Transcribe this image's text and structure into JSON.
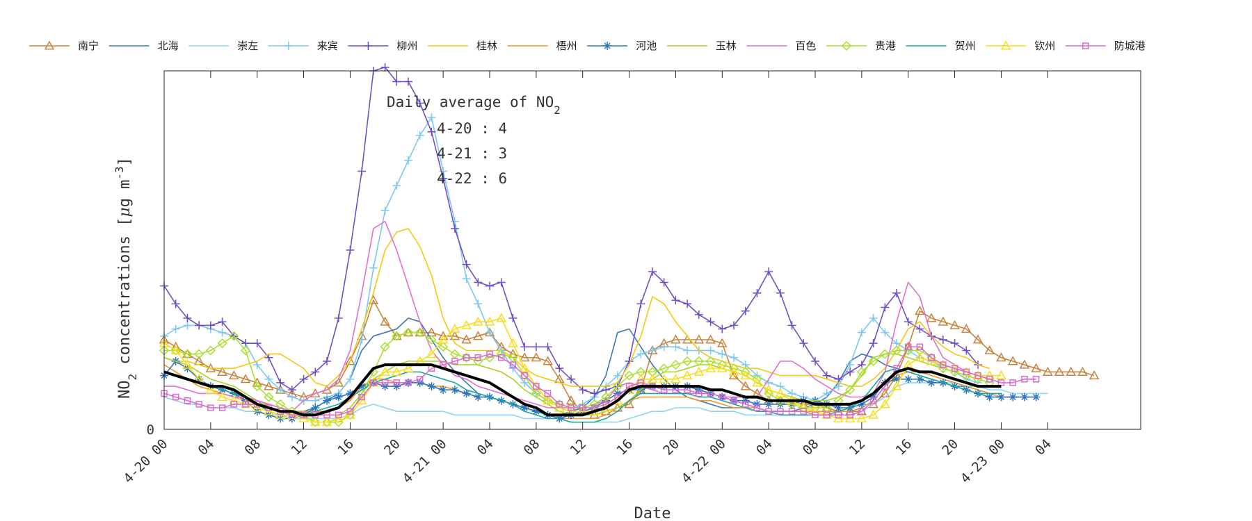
{
  "chart_data": {
    "type": "line",
    "xlabel": "Date",
    "ylabel": "NO",
    "ylabel_sub": "2",
    "ylabel_rest": " concentrations [",
    "ylabel_mu": "μ",
    "ylabel_unit": "g m",
    "ylabel_sup": "-3",
    "ylabel_close": "]",
    "y_tick_labels": [
      "0"
    ],
    "ylim": [
      0,
      100
    ],
    "x_tick_labels": [
      "4-20 00",
      "04",
      "08",
      "12",
      "16",
      "20",
      "4-21 00",
      "04",
      "08",
      "12",
      "16",
      "20",
      "4-22 00",
      "04",
      "08",
      "12",
      "16",
      "20",
      "4-23 00",
      "04"
    ],
    "grid": false,
    "legend_position": "top",
    "annotation": {
      "title": "Daily average of NO",
      "title_sub": "2",
      "lines": [
        "4-20 : 4",
        "4-21 : 3",
        "4-22 : 6"
      ]
    },
    "series": [
      {
        "name": "南宁",
        "color": "#c8823c",
        "marker": "triangle",
        "values": [
          25,
          23,
          21,
          19,
          17,
          16,
          15,
          14,
          13,
          12,
          11,
          10,
          9,
          10,
          11,
          13,
          19,
          26,
          36,
          30,
          26,
          27,
          27,
          27,
          26,
          26,
          25,
          26,
          27,
          23,
          21,
          20,
          20,
          19,
          14,
          8,
          5,
          4,
          5,
          6,
          7,
          11,
          22,
          24,
          25,
          25,
          25,
          25,
          24,
          15,
          12,
          10,
          8,
          8,
          8,
          7,
          7,
          6,
          5,
          5,
          5,
          7,
          10,
          15,
          23,
          33,
          31,
          30,
          29,
          28,
          25,
          22,
          20,
          19,
          18,
          17,
          16,
          16,
          16,
          16,
          15
        ]
      },
      {
        "name": "北海",
        "color": "#3a78b5",
        "marker": "none",
        "values": [
          16,
          15,
          14,
          13,
          12,
          11,
          10,
          9,
          8,
          7,
          6,
          5,
          5,
          6,
          8,
          10,
          14,
          22,
          26,
          27,
          28,
          31,
          30,
          25,
          20,
          16,
          13,
          10,
          9,
          8,
          7,
          6,
          5,
          4,
          4,
          5,
          6,
          9,
          15,
          27,
          28,
          23,
          18,
          14,
          11,
          9,
          8,
          7,
          6,
          6,
          6,
          5,
          5,
          5,
          5,
          6,
          7,
          9,
          13,
          19,
          21,
          20,
          18,
          17,
          16,
          15,
          14,
          13,
          12,
          12,
          11
        ]
      },
      {
        "name": "崇左",
        "color": "#8fd3f5",
        "marker": "none",
        "values": [
          9,
          8,
          7,
          7,
          6,
          6,
          6,
          5,
          5,
          4,
          4,
          3,
          3,
          3,
          3,
          3,
          4,
          6,
          7,
          6,
          5,
          5,
          5,
          5,
          5,
          4,
          4,
          4,
          4,
          4,
          4,
          3,
          3,
          3,
          3,
          2,
          2,
          2,
          2,
          2,
          3,
          4,
          5,
          5,
          6,
          6,
          6,
          5,
          5,
          5,
          4,
          4,
          4,
          4,
          4,
          4,
          4,
          4,
          4,
          4,
          5,
          7,
          9,
          12,
          13,
          13,
          13,
          13,
          13,
          12,
          12,
          11,
          11,
          10,
          10,
          10,
          10
        ]
      },
      {
        "name": "来宾",
        "color": "#7cc8f2",
        "marker": "plus",
        "values": [
          26,
          28,
          29,
          29,
          28,
          27,
          26,
          24,
          18,
          14,
          11,
          9,
          8,
          8,
          9,
          10,
          14,
          25,
          45,
          61,
          68,
          75,
          82,
          87,
          72,
          58,
          42,
          35,
          27,
          22,
          17,
          13,
          10,
          8,
          7,
          6,
          7,
          9,
          12,
          15,
          19,
          21,
          22,
          23,
          23,
          22,
          22,
          22,
          21,
          20,
          18,
          15,
          13,
          12,
          10,
          9,
          8,
          10,
          12,
          18,
          27,
          31,
          27,
          24,
          22,
          20,
          19,
          17,
          16,
          14,
          13
        ]
      },
      {
        "name": "柳州",
        "color": "#6f4fc8",
        "marker": "plus",
        "values": [
          40,
          35,
          31,
          29,
          29,
          30,
          26,
          24,
          24,
          20,
          13,
          11,
          14,
          16,
          19,
          31,
          50,
          72,
          100,
          101,
          97,
          97,
          91,
          83,
          70,
          56,
          46,
          41,
          40,
          41,
          31,
          23,
          23,
          23,
          17,
          14,
          11,
          10,
          11,
          12,
          19,
          35,
          44,
          41,
          36,
          35,
          32,
          30,
          28,
          29,
          33,
          38,
          44,
          38,
          29,
          24,
          19,
          15,
          14,
          16,
          18,
          24,
          34,
          38,
          30,
          28,
          26,
          25,
          24,
          22,
          18
        ]
      },
      {
        "name": "桂林",
        "color": "#f5c711",
        "marker": "none",
        "values": [
          20,
          19,
          19,
          18,
          17,
          17,
          17,
          18,
          19,
          21,
          21,
          19,
          17,
          13,
          12,
          15,
          19,
          28,
          38,
          50,
          55,
          56,
          51,
          43,
          31,
          24,
          22,
          22,
          22,
          22,
          20,
          17,
          15,
          14,
          13,
          12,
          12,
          12,
          12,
          13,
          18,
          26,
          37,
          35,
          30,
          26,
          22,
          20,
          19,
          18,
          17,
          17,
          16,
          15,
          15,
          15,
          15,
          14,
          13,
          12,
          12,
          14,
          17,
          22,
          28,
          30,
          26,
          23,
          21,
          20,
          18,
          17
        ]
      },
      {
        "name": "梧州",
        "color": "#f0962a",
        "marker": "none",
        "values": [
          18,
          16,
          14,
          12,
          11,
          10,
          9,
          8,
          7,
          7,
          6,
          5,
          5,
          5,
          5,
          6,
          8,
          12,
          14,
          14,
          13,
          13,
          13,
          12,
          12,
          11,
          10,
          9,
          9,
          8,
          7,
          6,
          5,
          4,
          3,
          3,
          3,
          3,
          4,
          6,
          8,
          9,
          9,
          9,
          9,
          9,
          8,
          8,
          7,
          6,
          6,
          6,
          5,
          5,
          5,
          5,
          5,
          5,
          5,
          5,
          6,
          8,
          12,
          15,
          16,
          16,
          15,
          14,
          13,
          12,
          11,
          10,
          9,
          9,
          9,
          9
        ]
      },
      {
        "name": "河池",
        "color": "#2f76b8",
        "marker": "asterisk",
        "values": [
          15,
          19,
          17,
          14,
          12,
          11,
          10,
          8,
          5,
          4,
          3,
          3,
          4,
          6,
          8,
          9,
          10,
          12,
          13,
          12,
          12,
          13,
          13,
          12,
          11,
          11,
          10,
          9,
          9,
          8,
          7,
          6,
          5,
          4,
          3,
          4,
          5,
          6,
          8,
          10,
          11,
          11,
          12,
          12,
          12,
          12,
          11,
          10,
          9,
          8,
          8,
          7,
          7,
          7,
          7,
          8,
          8,
          7,
          6,
          6,
          7,
          9,
          13,
          14,
          14,
          14,
          13,
          13,
          12,
          11,
          10,
          9,
          9,
          9,
          9,
          9
        ]
      },
      {
        "name": "玉林",
        "color": "#a6d32c",
        "marker": "none",
        "values": [
          20,
          19,
          18,
          16,
          14,
          13,
          12,
          10,
          8,
          6,
          5,
          4,
          4,
          4,
          4,
          4,
          6,
          10,
          14,
          16,
          18,
          19,
          19,
          19,
          19,
          18,
          18,
          18,
          17,
          16,
          14,
          11,
          9,
          7,
          5,
          4,
          4,
          4,
          5,
          6,
          8,
          11,
          14,
          16,
          16,
          17,
          18,
          18,
          17,
          16,
          15,
          13,
          11,
          10,
          9,
          8,
          8,
          8,
          9,
          11,
          15,
          20,
          21,
          21,
          20,
          19,
          18,
          17,
          16,
          15,
          14
        ]
      },
      {
        "name": "百色",
        "color": "#e06fcd",
        "marker": "none",
        "values": [
          12,
          12,
          11,
          10,
          10,
          10,
          9,
          9,
          8,
          7,
          6,
          5,
          8,
          10,
          11,
          14,
          22,
          38,
          56,
          58,
          50,
          40,
          30,
          22,
          18,
          15,
          14,
          12,
          11,
          10,
          9,
          8,
          7,
          6,
          6,
          6,
          6,
          7,
          8,
          12,
          13,
          12,
          11,
          10,
          10,
          10,
          10,
          10,
          9,
          9,
          9,
          9,
          14,
          19,
          19,
          17,
          14,
          12,
          10,
          9,
          9,
          10,
          16,
          30,
          41,
          37,
          26,
          20,
          18,
          16,
          15,
          15
        ]
      },
      {
        "name": "贵港",
        "color": "#a8e02c",
        "marker": "diamond",
        "values": [
          22,
          22,
          21,
          21,
          22,
          24,
          26,
          22,
          12,
          9,
          7,
          5,
          4,
          2,
          2,
          2,
          4,
          10,
          16,
          23,
          26,
          27,
          27,
          25,
          23,
          21,
          20,
          19,
          20,
          21,
          20,
          15,
          10,
          8,
          7,
          6,
          6,
          7,
          9,
          12,
          15,
          16,
          16,
          17,
          18,
          19,
          19,
          19,
          18,
          17,
          16,
          14,
          10,
          8,
          7,
          6,
          6,
          6,
          8,
          11,
          16,
          19,
          21,
          22,
          22,
          22,
          20,
          17,
          16,
          15,
          14,
          13
        ]
      },
      {
        "name": "贺州",
        "color": "#18a8a0",
        "marker": "none",
        "values": [
          16,
          15,
          14,
          13,
          12,
          11,
          10,
          9,
          7,
          5,
          4,
          4,
          4,
          5,
          6,
          7,
          9,
          11,
          13,
          14,
          15,
          16,
          16,
          15,
          14,
          13,
          11,
          10,
          9,
          8,
          7,
          5,
          4,
          3,
          3,
          2,
          2,
          2,
          3,
          5,
          8,
          10,
          10,
          10,
          10,
          10,
          9,
          9,
          8,
          7,
          6,
          5,
          5,
          4,
          4,
          4,
          4,
          4,
          5,
          6,
          8,
          12,
          16,
          17,
          16,
          15,
          14,
          13,
          12,
          11,
          10,
          10,
          10
        ]
      },
      {
        "name": "钦州",
        "color": "#f9dc1c",
        "marker": "triangle",
        "values": [
          24,
          22,
          18,
          14,
          11,
          9,
          8,
          7,
          6,
          5,
          4,
          4,
          3,
          2,
          2,
          3,
          4,
          8,
          13,
          16,
          16,
          17,
          19,
          21,
          25,
          28,
          29,
          30,
          30,
          31,
          24,
          17,
          12,
          8,
          6,
          5,
          5,
          5,
          6,
          8,
          11,
          14,
          14,
          14,
          14,
          15,
          16,
          17,
          17,
          16,
          15,
          13,
          11,
          10,
          8,
          6,
          5,
          4,
          3,
          3,
          3,
          4,
          7,
          12,
          18,
          20,
          19,
          18,
          17,
          16,
          15,
          15,
          15
        ]
      },
      {
        "name": "防城港",
        "color": "#d96bd0",
        "marker": "square",
        "values": [
          10,
          9,
          8,
          7,
          6,
          6,
          7,
          7,
          7,
          6,
          5,
          4,
          4,
          4,
          4,
          4,
          5,
          9,
          13,
          13,
          13,
          13,
          14,
          17,
          18,
          19,
          20,
          20,
          21,
          20,
          18,
          15,
          12,
          10,
          7,
          6,
          6,
          6,
          7,
          9,
          12,
          13,
          12,
          11,
          11,
          11,
          10,
          10,
          9,
          8,
          7,
          6,
          5,
          5,
          5,
          5,
          4,
          4,
          4,
          4,
          5,
          8,
          12,
          17,
          23,
          23,
          20,
          18,
          17,
          16,
          15,
          14,
          13,
          13,
          14,
          14
        ]
      },
      {
        "name": "",
        "color": "#000000",
        "marker": "none",
        "width": 4,
        "values": [
          16,
          15,
          14,
          13,
          12,
          12,
          11,
          9,
          7,
          6,
          5,
          5,
          4,
          4,
          5,
          6,
          9,
          13,
          17,
          18,
          18,
          18,
          18,
          18,
          17,
          16,
          15,
          14,
          13,
          11,
          9,
          7,
          6,
          4,
          4,
          4,
          4,
          5,
          6,
          8,
          11,
          12,
          12,
          12,
          12,
          12,
          12,
          11,
          11,
          10,
          9,
          9,
          8,
          8,
          8,
          8,
          7,
          7,
          7,
          7,
          8,
          10,
          13,
          16,
          17,
          16,
          16,
          15,
          14,
          13,
          12,
          12,
          12
        ]
      }
    ]
  }
}
